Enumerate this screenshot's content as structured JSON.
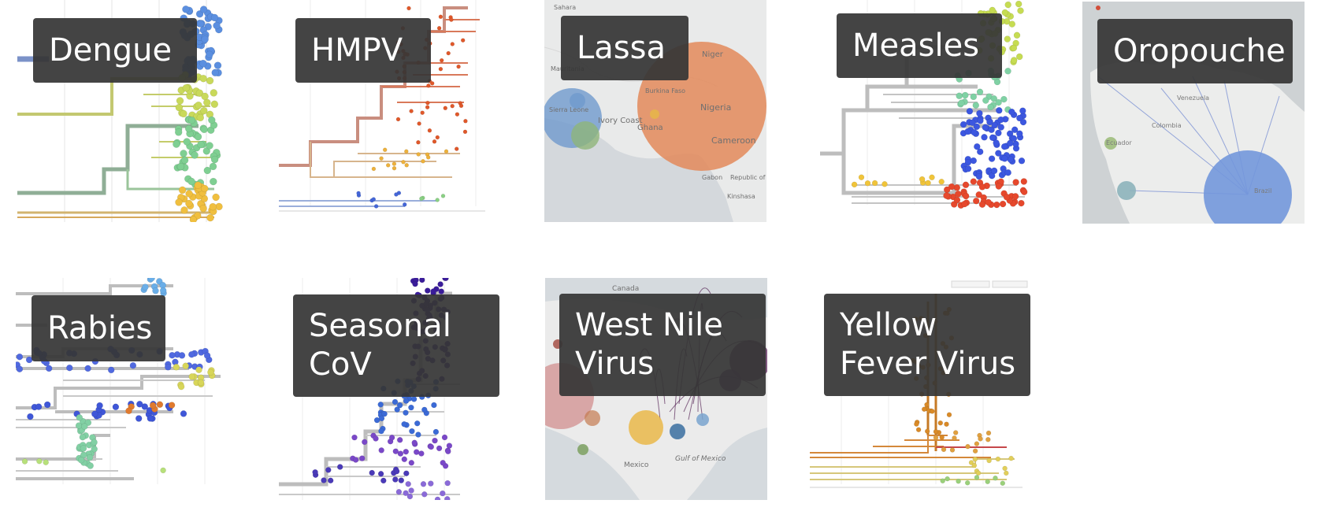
{
  "tiles": [
    {
      "id": "dengue",
      "label_lines": [
        "Dengue"
      ],
      "thumbnail": "phylogenetic-tree"
    },
    {
      "id": "hmpv",
      "label_lines": [
        "HMPV"
      ],
      "thumbnail": "phylogenetic-tree"
    },
    {
      "id": "lassa",
      "label_lines": [
        "Lassa"
      ],
      "thumbnail": "map",
      "map_labels": [
        "Niger",
        "Nigeria",
        "Cameroon",
        "Ivory Coast",
        "Ghana",
        "Burkina Faso",
        "Gabon",
        "Republic of the Congo",
        "Kinshasa",
        "Mauritania",
        "Sahara",
        "Sierra Leone"
      ]
    },
    {
      "id": "measles",
      "label_lines": [
        "Measles"
      ],
      "thumbnail": "phylogenetic-tree"
    },
    {
      "id": "oropouche",
      "label_lines": [
        "Oropouche"
      ],
      "thumbnail": "map",
      "map_labels": [
        "Venezuela",
        "Colombia",
        "Brazil",
        "Ecuador"
      ]
    },
    {
      "id": "rabies",
      "label_lines": [
        "Rabies"
      ],
      "thumbnail": "phylogenetic-tree"
    },
    {
      "id": "seasonal-cov",
      "label_lines": [
        "Seasonal",
        "CoV"
      ],
      "thumbnail": "phylogenetic-tree"
    },
    {
      "id": "west-nile",
      "label_lines": [
        "West Nile",
        "Virus"
      ],
      "thumbnail": "map",
      "map_labels": [
        "Canada",
        "Mexico",
        "Gulf of Mexico"
      ]
    },
    {
      "id": "yellow-fever",
      "label_lines": [
        "Yellow",
        "Fever Virus"
      ],
      "thumbnail": "phylogenetic-tree"
    }
  ],
  "colors": {
    "label_bg": "#363636",
    "label_text": "#ffffff",
    "map_bg": "#e9eaea",
    "tree_gray": "#b9b9b9"
  }
}
